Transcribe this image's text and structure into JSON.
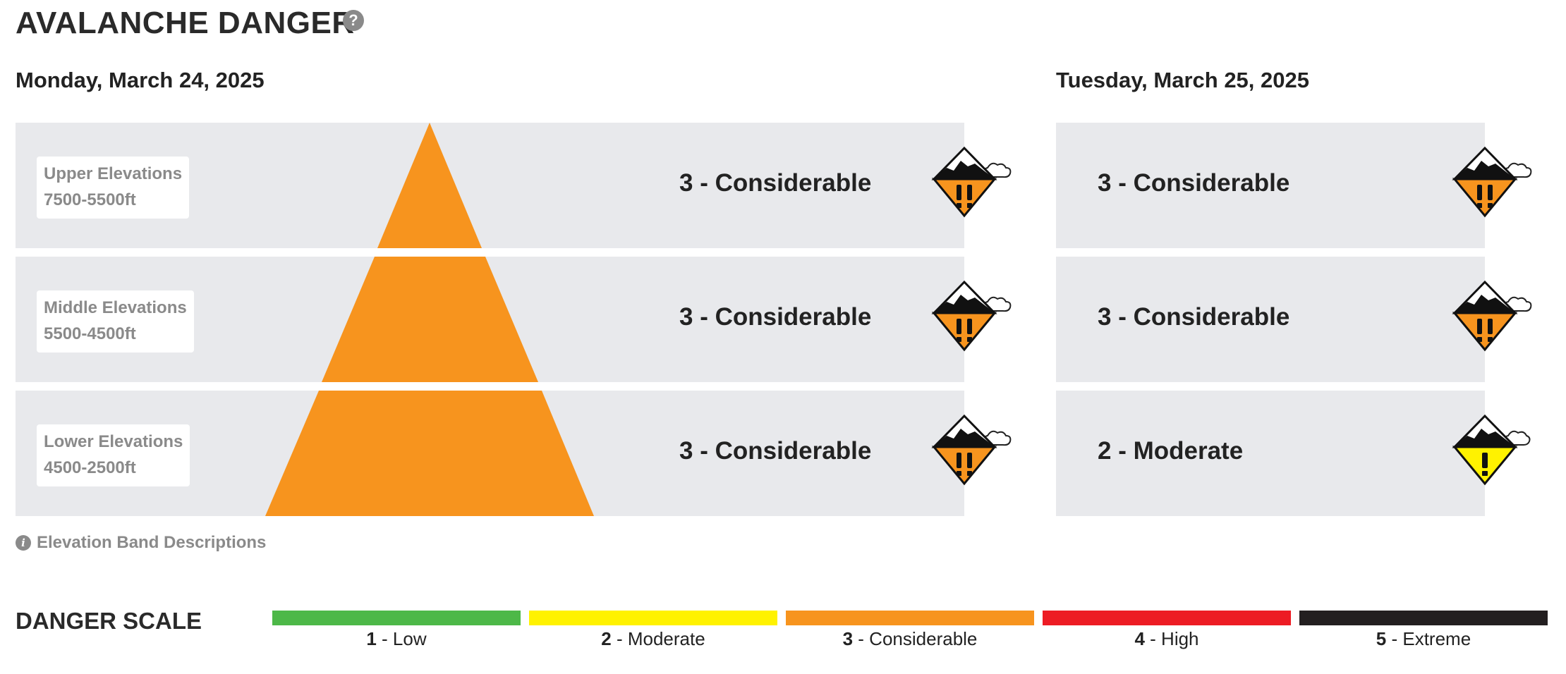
{
  "header": {
    "title": "AVALANCHE DANGER",
    "help_icon": "question-circle-icon",
    "help_glyph": "?"
  },
  "days": [
    {
      "date": "Monday, March 24, 2025",
      "ratings": [
        {
          "level": 3,
          "text": "3 - Considerable",
          "icon": "considerable-danger-icon"
        },
        {
          "level": 3,
          "text": "3 - Considerable",
          "icon": "considerable-danger-icon"
        },
        {
          "level": 3,
          "text": "3 - Considerable",
          "icon": "considerable-danger-icon"
        }
      ]
    },
    {
      "date": "Tuesday, March 25, 2025",
      "ratings": [
        {
          "level": 3,
          "text": "3 - Considerable",
          "icon": "considerable-danger-icon"
        },
        {
          "level": 3,
          "text": "3 - Considerable",
          "icon": "considerable-danger-icon"
        },
        {
          "level": 2,
          "text": "2 - Moderate",
          "icon": "moderate-danger-icon"
        }
      ]
    }
  ],
  "elevations": [
    {
      "name": "Upper Elevations",
      "range": "7500-5500ft"
    },
    {
      "name": "Middle Elevations",
      "range": "5500-4500ft"
    },
    {
      "name": "Lower Elevations",
      "range": "4500-2500ft"
    }
  ],
  "elevation_desc": {
    "label": "Elevation Band Descriptions",
    "icon": "info-icon",
    "glyph": "i"
  },
  "danger_scale": {
    "title": "DANGER SCALE",
    "items": [
      {
        "num": "1",
        "label": " - Low",
        "color": "#4db848"
      },
      {
        "num": "2",
        "label": " - Moderate",
        "color": "#fff200"
      },
      {
        "num": "3",
        "label": " - Considerable",
        "color": "#f7941e"
      },
      {
        "num": "4",
        "label": " - High",
        "color": "#ed1c24"
      },
      {
        "num": "5",
        "label": " - Extreme",
        "color": "#231f20"
      }
    ]
  },
  "colors": {
    "considerable": "#f7941e",
    "moderate": "#fff200",
    "band_bg": "#e8e9ec"
  }
}
